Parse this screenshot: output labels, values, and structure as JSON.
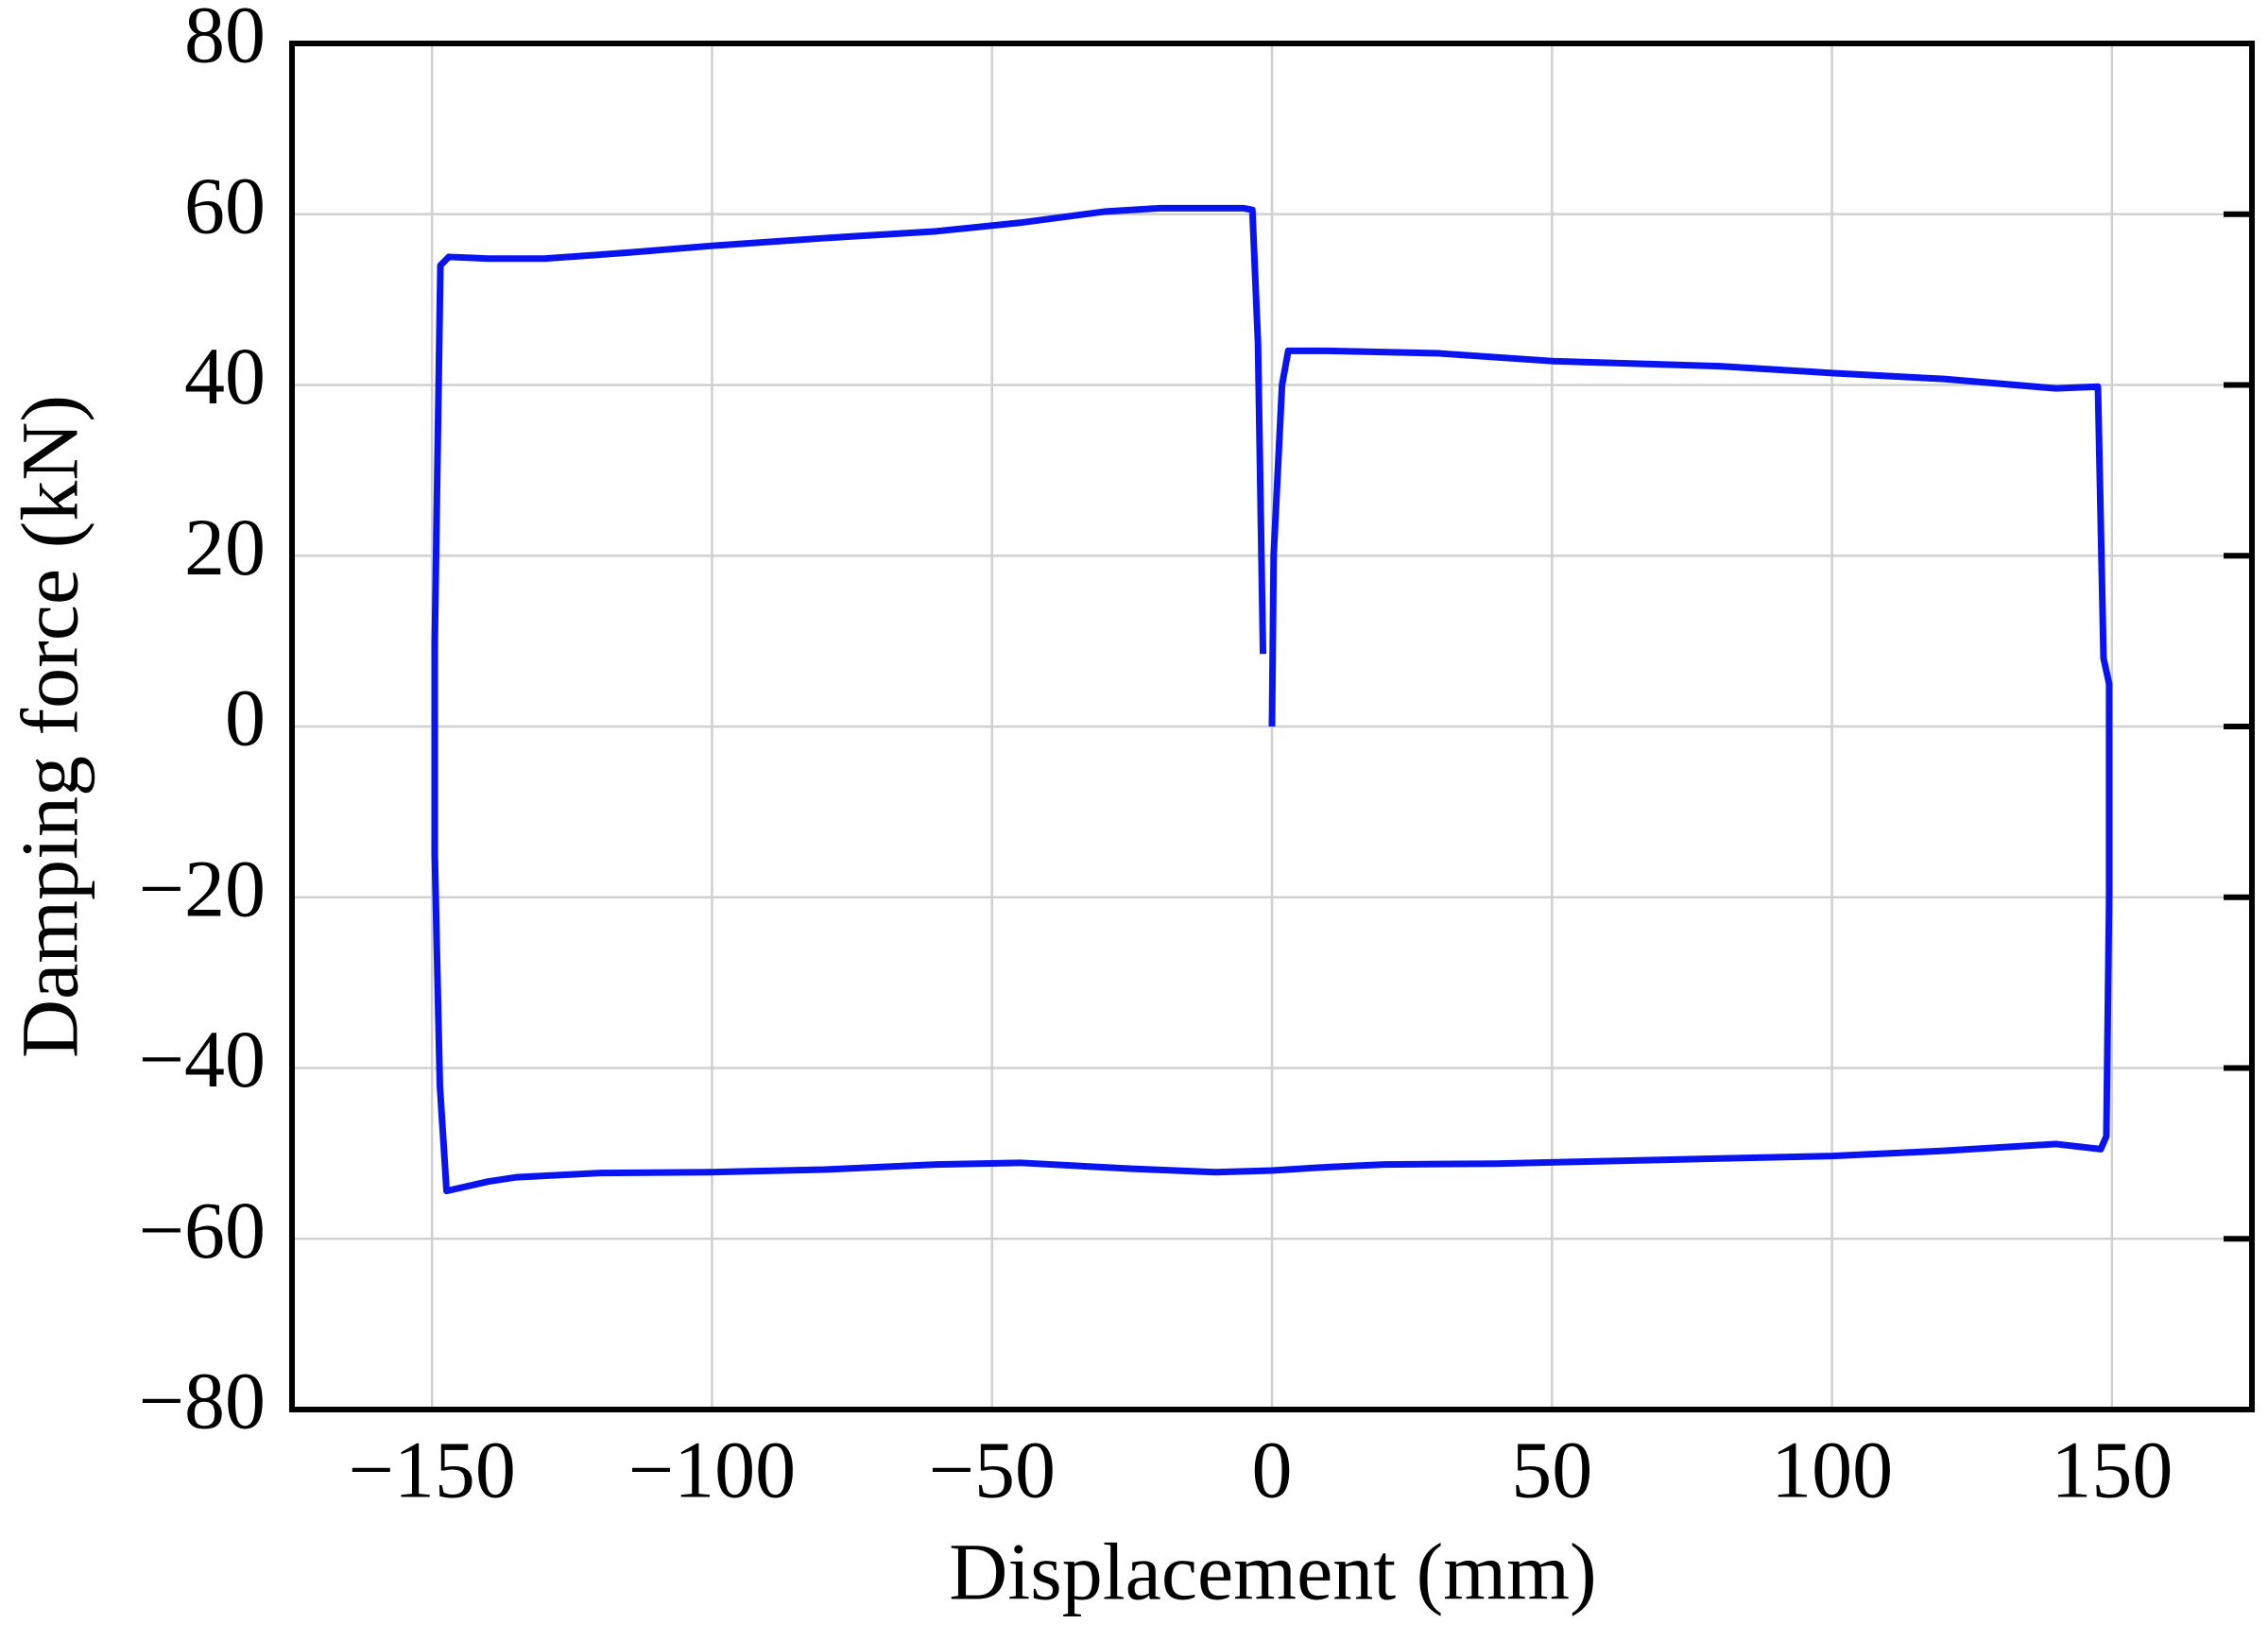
{
  "chart_data": {
    "type": "line",
    "x_label": "Displacement (mm)",
    "y_label": "Damping force (kN)",
    "xlim": [
      -175,
      175
    ],
    "ylim": [
      -80,
      80
    ],
    "xticks": [
      {
        "value": -150,
        "label": "−150"
      },
      {
        "value": -100,
        "label": "−100"
      },
      {
        "value": -50,
        "label": "−50"
      },
      0,
      50,
      100,
      150
    ],
    "yticks": [
      {
        "value": -80,
        "label": "−80"
      },
      {
        "value": -60,
        "label": "−60"
      },
      {
        "value": -40,
        "label": "−40"
      },
      {
        "value": -20,
        "label": "−20"
      },
      0,
      20,
      40,
      60,
      80
    ],
    "grid": true,
    "series": [
      {
        "color": "#0a14f0",
        "x": [
          0,
          0.3,
          1.8,
          2.9,
          10,
          30,
          50,
          80,
          100,
          120,
          140,
          147.5,
          148.5,
          149.5,
          149.5,
          149,
          148,
          140,
          120,
          100,
          80,
          60,
          40,
          20,
          10,
          0,
          -10,
          -25,
          -45,
          -60,
          -80,
          -100,
          -120,
          -135,
          -140,
          -147.4,
          -148.6,
          -149.5,
          -149.5,
          -148.5,
          -147,
          -140,
          -130,
          -115,
          -100,
          -80,
          -60,
          -45,
          -30,
          -20,
          -5,
          -3.5,
          -2.5,
          -1.6
        ],
        "values": [
          0,
          20,
          40,
          44,
          44,
          43.7,
          42.8,
          42.2,
          41.4,
          40.7,
          39.6,
          39.8,
          8,
          5,
          -20,
          -48,
          -49.5,
          -48.9,
          -49.7,
          -50.3,
          -50.6,
          -50.9,
          -51.2,
          -51.3,
          -51.6,
          -52,
          -52.2,
          -51.8,
          -51.1,
          -51.3,
          -51.9,
          -52.2,
          -52.3,
          -52.8,
          -53.3,
          -54.4,
          -42,
          -15,
          10,
          54,
          55,
          54.8,
          54.8,
          55.5,
          56.3,
          57.2,
          58,
          59,
          60.3,
          60.7,
          60.7,
          60.5,
          45,
          8.5
        ]
      }
    ]
  }
}
